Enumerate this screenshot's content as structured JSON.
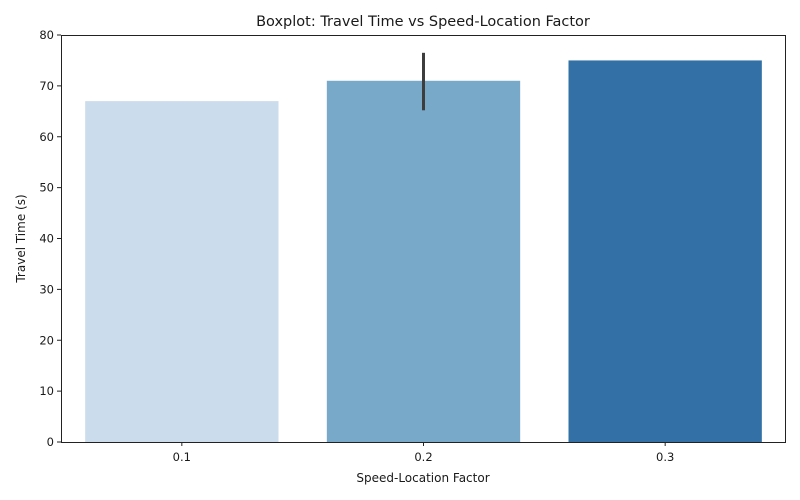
{
  "chart_data": {
    "type": "bar",
    "title": "Boxplot: Travel Time vs Speed-Location Factor",
    "xlabel": "Speed-Location Factor",
    "ylabel": "Travel Time (s)",
    "categories": [
      "0.1",
      "0.2",
      "0.3"
    ],
    "values": [
      67,
      71,
      75
    ],
    "error_bars": [
      null,
      [
        65.2,
        76.5
      ],
      null
    ],
    "ylim": [
      0,
      80
    ],
    "yticks": [
      0,
      10,
      20,
      30,
      40,
      50,
      60,
      70,
      80
    ],
    "colors": [
      "#cbdcec",
      "#78a9c9",
      "#3370a6"
    ],
    "error_bar_color": "#3d3d3d",
    "grid": false,
    "legend": "none"
  }
}
